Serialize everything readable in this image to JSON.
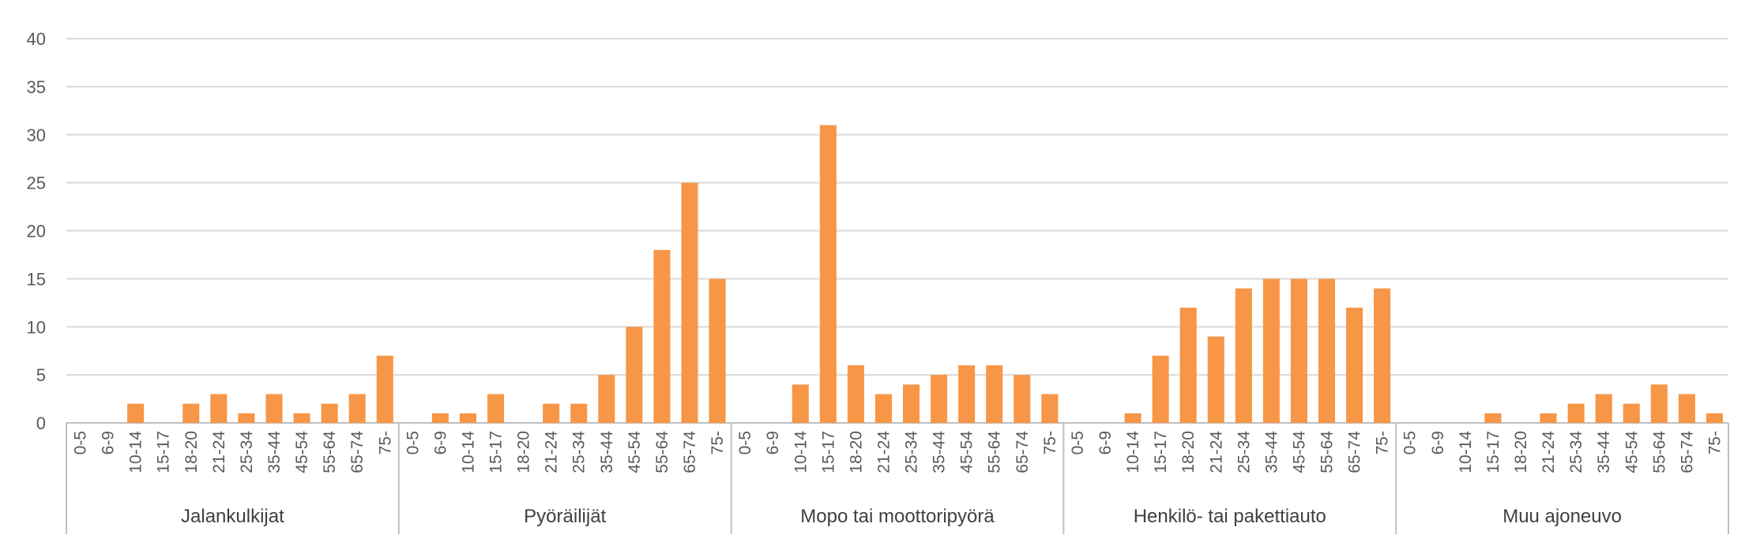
{
  "chart_data": {
    "type": "bar",
    "title": "",
    "xlabel": "",
    "ylabel": "",
    "ylim": [
      0,
      40
    ],
    "yticks": [
      0,
      5,
      10,
      15,
      20,
      25,
      30,
      35,
      40
    ],
    "grid": true,
    "legend": "none",
    "bar_color": "#F79646",
    "age_groups": [
      "0-5",
      "6-9",
      "10-14",
      "15-17",
      "18-20",
      "21-24",
      "25-34",
      "35-44",
      "45-54",
      "55-64",
      "65-74",
      "75-"
    ],
    "groups": [
      {
        "label": "Jalankulkijat",
        "values": [
          0,
          0,
          2,
          0,
          2,
          3,
          1,
          3,
          1,
          2,
          3,
          7
        ]
      },
      {
        "label": "Pyöräilijät",
        "values": [
          0,
          1,
          1,
          3,
          0,
          2,
          2,
          5,
          10,
          18,
          25,
          15
        ]
      },
      {
        "label": "Mopo tai moottoripyörä",
        "values": [
          0,
          0,
          4,
          31,
          6,
          3,
          4,
          5,
          6,
          6,
          5,
          3
        ]
      },
      {
        "label": "Henkilö- tai pakettiauto",
        "values": [
          0,
          0,
          1,
          7,
          12,
          9,
          14,
          15,
          15,
          15,
          12,
          14
        ]
      },
      {
        "label": "Muu ajoneuvo",
        "values": [
          0,
          0,
          0,
          1,
          0,
          1,
          2,
          3,
          2,
          4,
          3,
          1
        ]
      }
    ]
  }
}
